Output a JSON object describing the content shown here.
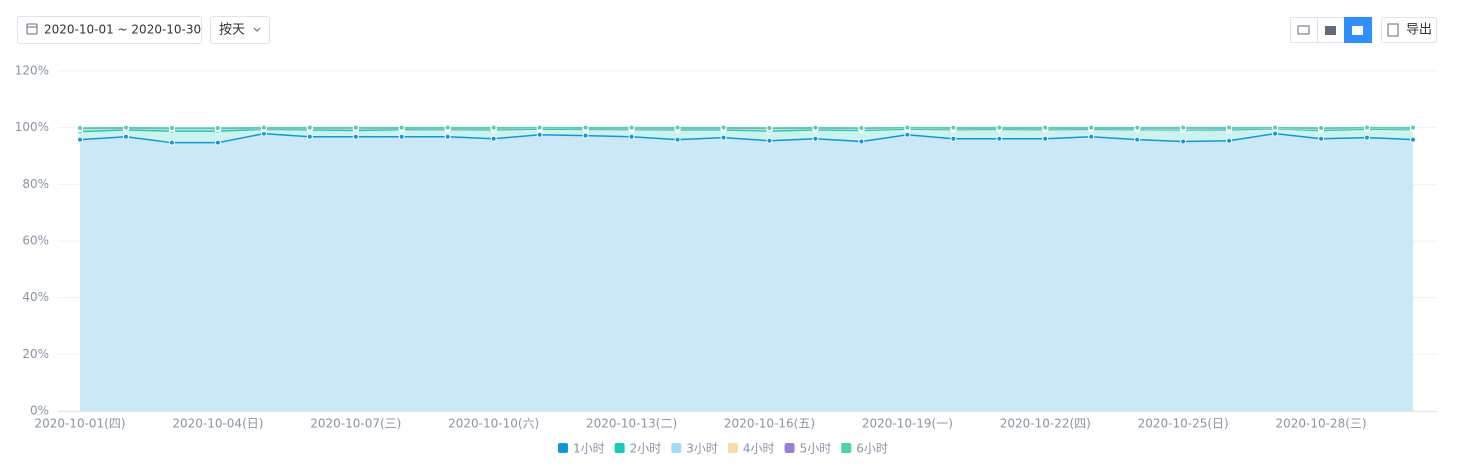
{
  "toolbar": {
    "date_range": "2020-10-01 ~ 2020-10-30",
    "granularity": "按天",
    "export": "导出"
  },
  "chart_data": {
    "type": "area",
    "categories": [
      "2020-10-01(四)",
      null,
      null,
      "2020-10-04(日)",
      null,
      null,
      "2020-10-07(三)",
      null,
      null,
      "2020-10-10(六)",
      null,
      null,
      "2020-10-13(二)",
      null,
      null,
      "2020-10-16(五)",
      null,
      null,
      "2020-10-19(一)",
      null,
      null,
      "2020-10-22(四)",
      null,
      null,
      "2020-10-25(日)",
      null,
      null,
      "2020-10-28(三)",
      null,
      null
    ],
    "series": [
      {
        "name": "1小时",
        "color": "#1296db",
        "values": [
          95.8,
          96.8,
          94.7,
          94.7,
          97.9,
          96.8,
          96.8,
          96.8,
          96.8,
          96.1,
          97.5,
          97.2,
          96.8,
          95.8,
          96.5,
          95.4,
          96.1,
          95.1,
          97.5,
          96.1,
          96.1,
          96.1,
          96.8,
          95.8,
          95.1,
          95.4,
          97.9,
          96.1,
          96.5,
          95.8
        ]
      },
      {
        "name": "2小时",
        "color": "#1bc9b5",
        "values": [
          98.6,
          99.2,
          98.8,
          98.8,
          99.4,
          99.2,
          99.0,
          99.3,
          99.3,
          99.2,
          99.5,
          99.4,
          99.3,
          99.2,
          99.2,
          98.8,
          99.2,
          99.0,
          99.5,
          99.3,
          99.4,
          99.3,
          99.4,
          99.3,
          99.2,
          99.2,
          99.6,
          99.0,
          99.5,
          99.3
        ]
      },
      {
        "name": "3小时",
        "color": "#a6dcf0",
        "values": [
          99.3,
          99.6,
          99.4,
          99.4,
          99.7,
          99.6,
          99.5,
          99.7,
          99.6,
          99.6,
          99.8,
          99.7,
          99.6,
          99.6,
          99.6,
          99.3,
          99.6,
          99.4,
          99.8,
          99.6,
          99.7,
          99.6,
          99.7,
          99.6,
          99.5,
          99.6,
          99.8,
          99.4,
          99.8,
          99.6
        ]
      },
      {
        "name": "4小时",
        "color": "#f5dca4",
        "values": [
          99.6,
          99.8,
          99.7,
          99.7,
          99.9,
          99.8,
          99.8,
          99.9,
          99.8,
          99.8,
          99.9,
          99.9,
          99.8,
          99.8,
          99.8,
          99.6,
          99.8,
          99.7,
          99.9,
          99.8,
          99.9,
          99.8,
          99.9,
          99.8,
          99.8,
          99.8,
          99.9,
          99.7,
          99.9,
          99.8
        ]
      },
      {
        "name": "5小时",
        "color": "#9b7fd1",
        "values": [
          99.8,
          99.9,
          99.8,
          99.8,
          99.9,
          99.9,
          99.9,
          99.9,
          99.9,
          99.9,
          100,
          99.9,
          99.9,
          99.9,
          99.9,
          99.8,
          99.9,
          99.8,
          100,
          99.9,
          99.9,
          99.9,
          99.9,
          99.9,
          99.9,
          99.9,
          100,
          99.8,
          100,
          99.9
        ]
      },
      {
        "name": "6小时",
        "color": "#4fd3a3",
        "values": [
          99.9,
          100,
          99.9,
          99.9,
          100,
          100,
          100,
          100,
          100,
          100,
          100,
          100,
          100,
          100,
          100,
          99.9,
          100,
          99.9,
          100,
          100,
          100,
          100,
          100,
          100,
          100,
          100,
          100,
          99.9,
          100,
          100
        ]
      }
    ],
    "ylim": [
      0,
      120
    ],
    "yticks": [
      {
        "value": 0,
        "label": "0%"
      },
      {
        "value": 20,
        "label": "20%"
      },
      {
        "value": 40,
        "label": "40%"
      },
      {
        "value": 60,
        "label": "60%"
      },
      {
        "value": 80,
        "label": "80%"
      },
      {
        "value": 100,
        "label": "100%"
      },
      {
        "value": 120,
        "label": "120%"
      }
    ],
    "grid": true
  }
}
